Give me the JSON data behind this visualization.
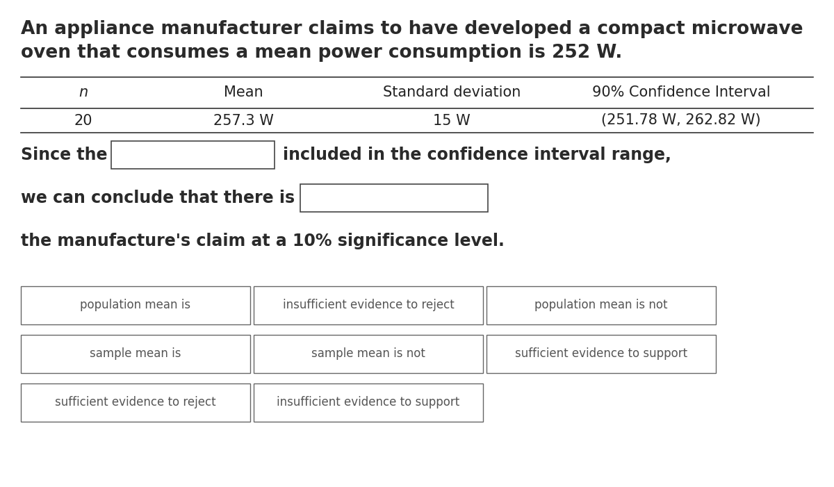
{
  "title_line1": "An appliance manufacturer claims to have developed a compact microwave",
  "title_line2": "oven that consumes a mean power consumption is 252 W.",
  "table_headers": [
    "n",
    "Mean",
    "Standard deviation",
    "90% Confidence Interval"
  ],
  "table_values": [
    "20",
    "257.3 W",
    "15 W",
    "(251.78 W, 262.82 W)"
  ],
  "sentence1_before": "Since the",
  "sentence1_after": "included in the confidence interval range,",
  "sentence2_before": "we can conclude that there is",
  "sentence3": "the manufacture's claim at a 10% significance level.",
  "options_row1": [
    "population mean is",
    "insufficient evidence to reject",
    "population mean is not"
  ],
  "options_row2": [
    "sample mean is",
    "sample mean is not",
    "sufficient evidence to support"
  ],
  "options_row3": [
    "sufficient evidence to reject",
    "insufficient evidence to support"
  ],
  "bg_color": "#ffffff",
  "text_color": "#333333",
  "title_fontsize": 19,
  "header_fontsize": 15,
  "body_fontsize": 15,
  "sentence_fontsize": 17,
  "option_fontsize": 12
}
